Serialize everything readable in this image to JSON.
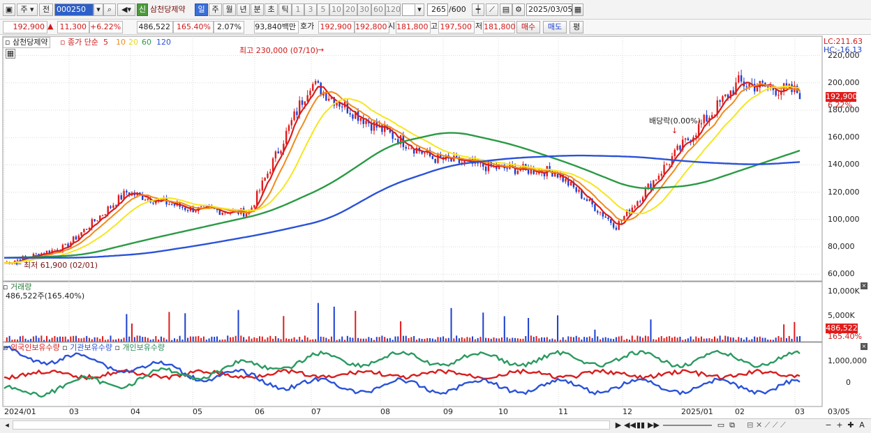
{
  "toolbar": {
    "window_icon": "window-menu-icon",
    "period_unit": "주",
    "prev_label": "전",
    "code_value": "000250",
    "search_icon": "magnifier-icon",
    "sound_icon": "speaker-icon",
    "credit_badge": "신",
    "stock_name": "삼천당제약",
    "period_buttons": [
      "일",
      "주",
      "월",
      "년",
      "분",
      "초",
      "틱"
    ],
    "active_period": "일",
    "interval_buttons": [
      "1",
      "3",
      "5",
      "10",
      "20",
      "30",
      "60",
      "120"
    ],
    "count_value": "265",
    "count_total": "/600",
    "date_value": "2025/03/05"
  },
  "quote": {
    "price": "192,900",
    "change_arrow": "▲",
    "change": "11,300",
    "change_pct": "+6.22%",
    "volume": "486,522",
    "volume_ratio": "165.40%",
    "turnover_pct": "2.07%",
    "amount": "93,840백만",
    "bid_label": "호가",
    "bid1": "192,900",
    "bid2": "192,800",
    "open_label": "시",
    "open": "181,800",
    "high_label": "고",
    "high": "197,500",
    "low_label": "저",
    "low": "181,800",
    "buy_label": "매수",
    "sell_label": "매도",
    "even_label": "평"
  },
  "price_panel": {
    "name_label": "삼천당제약",
    "ma_label": "종가 단순",
    "ma_periods": [
      "5",
      "10",
      "20",
      "60",
      "120"
    ],
    "ma_colors": [
      "#d81e1e",
      "#f08a1c",
      "#f5e61e",
      "#2a9a44",
      "#2a52d8"
    ],
    "lc_label": "LC:211.63",
    "hc_label": "HC:-16.13",
    "high_note": "최고 230,000 (07/10)",
    "low_note": "최저 61,900 (02/01)",
    "dividend_note": "배당락(0.00%)",
    "last_price_tag": "192,900",
    "last_pct_tag": "6.22%",
    "y_ticks": [
      "220,000",
      "200,000",
      "180,000",
      "160,000",
      "140,000",
      "120,000",
      "100,000",
      "80,000",
      "60,000"
    ]
  },
  "volume_panel": {
    "title": "거래량",
    "value_label": "486,522주(165.40%)",
    "y_ticks": [
      "10,000K",
      "5,000K"
    ],
    "last_tag": "486,522",
    "last_pct_tag": "165.40%"
  },
  "holding_panel": {
    "series_labels": [
      "외국인보유수량",
      "기관보유수량",
      "개인보유수량"
    ],
    "series_colors": [
      "#d81e1e",
      "#2a52d8",
      "#2a9a60"
    ],
    "y_ticks": [
      "1,000,000",
      "0"
    ]
  },
  "x_axis": {
    "labels": [
      "2024/01",
      "03",
      "04",
      "05",
      "06",
      "07",
      "08",
      "09",
      "10",
      "11",
      "12",
      "2025/01",
      "02",
      "03"
    ],
    "right_label": "03/05"
  },
  "bottom_bar": {
    "nav_icons": [
      "scroll-left-icon",
      "play-icon",
      "rewind-icon",
      "pause-icon",
      "fast-forward-icon"
    ],
    "tool_icons": [
      "zoom-out-icon",
      "zoom-in-icon",
      "crosshair-icon",
      "font-icon"
    ]
  },
  "chart_data": {
    "type": "line",
    "series": [
      {
        "name": "5",
        "kind": "moving-average"
      },
      {
        "name": "10",
        "kind": "moving-average"
      },
      {
        "name": "20",
        "kind": "moving-average"
      },
      {
        "name": "60",
        "kind": "moving-average"
      },
      {
        "name": "120",
        "kind": "moving-average"
      }
    ],
    "x": [
      "2024/01",
      "2024/03",
      "2024/04",
      "2024/05",
      "2024/06",
      "2024/07",
      "2024/08",
      "2024/09",
      "2024/10",
      "2024/11",
      "2024/12",
      "2025/01",
      "2025/02",
      "2025/03"
    ],
    "close_approx": [
      68000,
      80000,
      120000,
      108000,
      105000,
      200000,
      170000,
      145000,
      138000,
      135000,
      95000,
      150000,
      200000,
      192900
    ],
    "ma60_approx": [
      72000,
      74000,
      85000,
      95000,
      105000,
      125000,
      155000,
      165000,
      155000,
      140000,
      122000,
      125000,
      140000,
      155000
    ],
    "ma120_approx": [
      72000,
      72000,
      75000,
      82000,
      90000,
      100000,
      125000,
      140000,
      145000,
      147000,
      146000,
      142000,
      140000,
      143000
    ],
    "ylim": [
      55000,
      230000
    ],
    "grid": true,
    "legend_position": "top-left"
  }
}
